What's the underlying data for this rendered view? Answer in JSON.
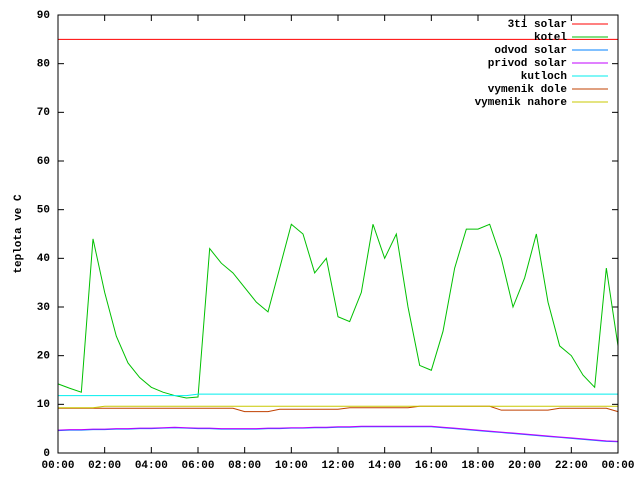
{
  "chart_data": {
    "type": "line",
    "y_label": "teplota ve C",
    "xlim": [
      0,
      24
    ],
    "xticks": [
      {
        "value": 0,
        "label": "00:00"
      },
      {
        "value": 2,
        "label": "02:00"
      },
      {
        "value": 4,
        "label": "04:00"
      },
      {
        "value": 6,
        "label": "06:00"
      },
      {
        "value": 8,
        "label": "08:00"
      },
      {
        "value": 10,
        "label": "10:00"
      },
      {
        "value": 12,
        "label": "12:00"
      },
      {
        "value": 14,
        "label": "14:00"
      },
      {
        "value": 16,
        "label": "16:00"
      },
      {
        "value": 18,
        "label": "18:00"
      },
      {
        "value": 20,
        "label": "20:00"
      },
      {
        "value": 22,
        "label": "22:00"
      },
      {
        "value": 24,
        "label": "00:00"
      }
    ],
    "ylim": [
      0,
      90
    ],
    "yticks": [
      0,
      10,
      20,
      30,
      40,
      50,
      60,
      70,
      80,
      90
    ],
    "legend": "top-right",
    "x": [
      0,
      0.5,
      1,
      1.5,
      2,
      2.5,
      3,
      3.5,
      4,
      4.5,
      5,
      5.5,
      6,
      6.5,
      7,
      7.5,
      8,
      8.5,
      9,
      9.5,
      10,
      10.5,
      11,
      11.5,
      12,
      12.5,
      13,
      13.5,
      14,
      14.5,
      15,
      15.5,
      16,
      16.5,
      17,
      17.5,
      18,
      18.5,
      19,
      19.5,
      20,
      20.5,
      21,
      21.5,
      22,
      22.5,
      23,
      23.5,
      24
    ],
    "series": [
      {
        "name": "3ti solar",
        "color": "#ff0000",
        "values": [
          85,
          85,
          85,
          85,
          85,
          85,
          85,
          85,
          85,
          85,
          85,
          85,
          85,
          85,
          85,
          85,
          85,
          85,
          85,
          85,
          85,
          85,
          85,
          85,
          85,
          85,
          85,
          85,
          85,
          85,
          85,
          85,
          85,
          85,
          85,
          85,
          85,
          85,
          85,
          85,
          85,
          85,
          85,
          85,
          85,
          85,
          85,
          85,
          85
        ]
      },
      {
        "name": "kotel",
        "color": "#00c000",
        "values": [
          14.2,
          13.3,
          12.5,
          44,
          33,
          24,
          18.5,
          15.5,
          13.5,
          12.5,
          11.8,
          11.3,
          11.5,
          42,
          39,
          37,
          34,
          31,
          29,
          38,
          47,
          45,
          37,
          40,
          28,
          27,
          33,
          47,
          40,
          45,
          30,
          18,
          17,
          25,
          38,
          46,
          46,
          47,
          40,
          30,
          36,
          45,
          31,
          22,
          20,
          16,
          13.5,
          38,
          22
        ]
      },
      {
        "name": "odvod solar",
        "color": "#0080ff",
        "values": [
          4.6,
          4.7,
          4.7,
          4.8,
          4.8,
          4.9,
          4.9,
          5,
          5,
          5.1,
          5.2,
          5.1,
          5,
          5,
          4.9,
          4.9,
          4.9,
          4.9,
          5,
          5,
          5.1,
          5.1,
          5.2,
          5.2,
          5.3,
          5.3,
          5.4,
          5.4,
          5.4,
          5.4,
          5.4,
          5.4,
          5.4,
          5.2,
          5,
          4.8,
          4.6,
          4.4,
          4.2,
          4,
          3.8,
          3.6,
          3.4,
          3.2,
          3,
          2.8,
          2.6,
          2.4,
          2.3
        ]
      },
      {
        "name": "privod solar",
        "color": "#c000ff",
        "values": [
          4.7,
          4.8,
          4.8,
          4.9,
          4.9,
          5,
          5,
          5.1,
          5.1,
          5.2,
          5.3,
          5.2,
          5.1,
          5.1,
          5,
          5,
          5,
          5,
          5.1,
          5.1,
          5.2,
          5.2,
          5.3,
          5.3,
          5.4,
          5.4,
          5.5,
          5.5,
          5.5,
          5.5,
          5.5,
          5.5,
          5.5,
          5.3,
          5.1,
          4.9,
          4.7,
          4.5,
          4.3,
          4.1,
          3.9,
          3.7,
          3.5,
          3.3,
          3.1,
          2.9,
          2.7,
          2.5,
          2.4
        ]
      },
      {
        "name": "kutloch",
        "color": "#00eeee",
        "values": [
          11.8,
          11.8,
          11.8,
          11.8,
          11.8,
          11.8,
          11.8,
          11.8,
          11.8,
          11.8,
          11.8,
          11.8,
          12.1,
          12.1,
          12.1,
          12.1,
          12.1,
          12.1,
          12.1,
          12.1,
          12.1,
          12.1,
          12.1,
          12.1,
          12.1,
          12.1,
          12.1,
          12.1,
          12.1,
          12.1,
          12.1,
          12.1,
          12.1,
          12.1,
          12.1,
          12.1,
          12.1,
          12.1,
          12.1,
          12.1,
          12.1,
          12.1,
          12.1,
          12.1,
          12.1,
          12.1,
          12.1,
          12.1,
          12.1
        ]
      },
      {
        "name": "vymenik dole",
        "color": "#c04000",
        "values": [
          9.2,
          9.2,
          9.2,
          9.2,
          9.2,
          9.2,
          9.2,
          9.2,
          9.2,
          9.2,
          9.2,
          9.2,
          9.2,
          9.2,
          9.2,
          9.2,
          8.5,
          8.5,
          8.5,
          9,
          9,
          9,
          9,
          9,
          9,
          9.3,
          9.3,
          9.3,
          9.3,
          9.3,
          9.3,
          9.6,
          9.6,
          9.6,
          9.6,
          9.6,
          9.6,
          9.6,
          8.8,
          8.8,
          8.8,
          8.8,
          8.8,
          9.2,
          9.2,
          9.2,
          9.2,
          9.2,
          8.5
        ]
      },
      {
        "name": "vymenik nahore",
        "color": "#c8c800",
        "values": [
          9.3,
          9.3,
          9.3,
          9.3,
          9.6,
          9.6,
          9.6,
          9.6,
          9.6,
          9.6,
          9.6,
          9.6,
          9.6,
          9.6,
          9.6,
          9.6,
          9.6,
          9.6,
          9.6,
          9.6,
          9.6,
          9.6,
          9.6,
          9.6,
          9.6,
          9.6,
          9.6,
          9.6,
          9.6,
          9.6,
          9.6,
          9.6,
          9.6,
          9.6,
          9.6,
          9.6,
          9.6,
          9.6,
          9.6,
          9.6,
          9.6,
          9.6,
          9.6,
          9.6,
          9.6,
          9.6,
          9.6,
          9.6,
          9.6
        ]
      }
    ]
  }
}
